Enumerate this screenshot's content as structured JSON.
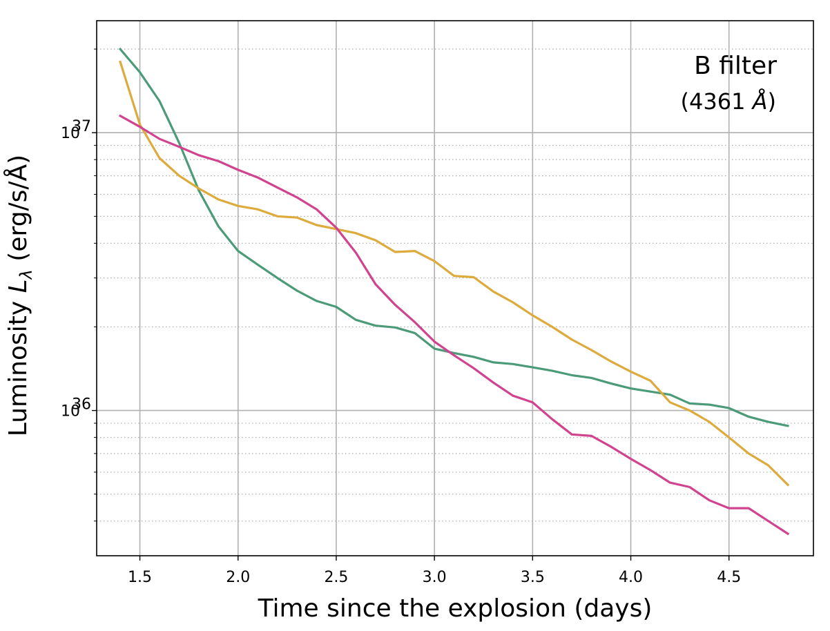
{
  "chart_data": {
    "type": "line",
    "title": "",
    "xlabel": "Time since the explosion (days)",
    "ylabel_prefix": "Luminosity ",
    "ylabel_symbol": "L",
    "ylabel_subscript": "λ",
    "ylabel_units": " (erg/s/Å)",
    "yscale": "log",
    "xlim": [
      1.28,
      4.93
    ],
    "ylim": [
      3e+35,
      2.53e+37
    ],
    "xticks": [
      1.5,
      2.0,
      2.5,
      3.0,
      3.5,
      4.0,
      4.5
    ],
    "xtick_labels": [
      "1.5",
      "2.0",
      "2.5",
      "3.0",
      "3.5",
      "4.0",
      "4.5"
    ],
    "yticks_major": [
      {
        "value": 1e+37,
        "base": "10",
        "exp": "37"
      },
      {
        "value": 1e+36,
        "base": "10",
        "exp": "36"
      }
    ],
    "grid": true,
    "annotation": {
      "line1": "B filter",
      "line2_prefix": "(4361 ",
      "line2_unit": "Å",
      "line2_suffix": ")"
    },
    "x": [
      1.4,
      1.5,
      1.6,
      1.7,
      1.8,
      1.9,
      2.0,
      2.1,
      2.2,
      2.3,
      2.4,
      2.5,
      2.6,
      2.7,
      2.8,
      2.9,
      3.0,
      3.1,
      3.2,
      3.3,
      3.4,
      3.5,
      3.6,
      3.7,
      3.8,
      3.9,
      4.0,
      4.1,
      4.2,
      4.3,
      4.4,
      4.5,
      4.6,
      4.7,
      4.8
    ],
    "series": [
      {
        "color": "#4b9a78",
        "values": [
          2e+37,
          1.65e+37,
          1.3e+37,
          9.2e+36,
          6.2e+36,
          4.6e+36,
          3.75e+36,
          3.35e+36,
          3e+36,
          2.7e+36,
          2.48e+36,
          2.36e+36,
          2.12e+36,
          2.02e+36,
          1.99e+36,
          1.9e+36,
          1.67e+36,
          1.61e+36,
          1.56e+36,
          1.49e+36,
          1.47e+36,
          1.43e+36,
          1.39e+36,
          1.34e+36,
          1.31e+36,
          1.25e+36,
          1.2e+36,
          1.17e+36,
          1.14e+36,
          1.06e+36,
          1.05e+36,
          1.02e+36,
          9.5e+35,
          9.1e+35,
          8.8e+35
        ]
      },
      {
        "color": "#dcab3c",
        "values": [
          1.8e+37,
          1.07e+37,
          8.1e+36,
          7e+36,
          6.3e+36,
          5.75e+36,
          5.45e+36,
          5.3e+36,
          5e+36,
          4.95e+36,
          4.65e+36,
          4.5e+36,
          4.35e+36,
          4.1e+36,
          3.72e+36,
          3.75e+36,
          3.45e+36,
          3.05e+36,
          3.02e+36,
          2.68e+36,
          2.45e+36,
          2.2e+36,
          2e+36,
          1.8e+36,
          1.65e+36,
          1.5e+36,
          1.38e+36,
          1.28e+36,
          1.07e+36,
          1e+36,
          9.1e+35,
          8e+35,
          7e+35,
          6.35e+35,
          5.4e+35
        ]
      },
      {
        "color": "#d1428f",
        "values": [
          1.15e+37,
          1.05e+37,
          9.5e+36,
          8.9e+36,
          8.3e+36,
          7.9e+36,
          7.35e+36,
          6.9e+36,
          6.35e+36,
          5.85e+36,
          5.3e+36,
          4.55e+36,
          3.7e+36,
          2.85e+36,
          2.4e+36,
          2.08e+36,
          1.77e+36,
          1.58e+36,
          1.42e+36,
          1.26e+36,
          1.13e+36,
          1.07e+36,
          9.3e+35,
          8.2e+35,
          8.1e+35,
          7.4e+35,
          6.7e+35,
          6.1e+35,
          5.5e+35,
          5.3e+35,
          4.75e+35,
          4.45e+35,
          4.45e+35,
          4e+35,
          3.6e+35
        ]
      }
    ]
  }
}
